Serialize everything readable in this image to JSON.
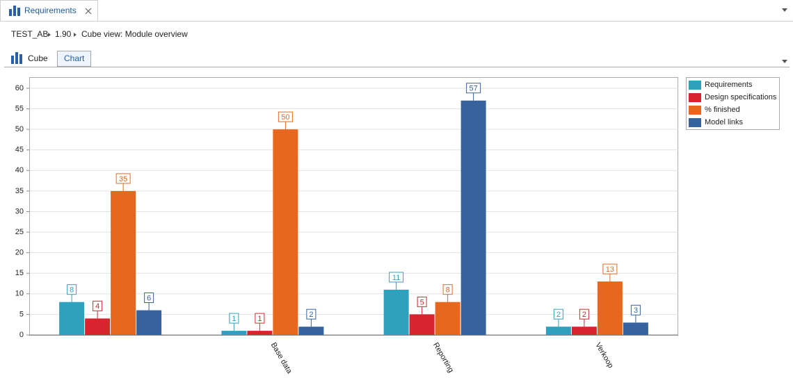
{
  "tab": {
    "title": "Requirements"
  },
  "breadcrumb": [
    "TEST_AB",
    "1.90",
    "Cube view: Module overview"
  ],
  "view_tabs": [
    "Cube",
    "Chart"
  ],
  "chart_data": {
    "type": "bar",
    "categories": [
      null,
      "Base data",
      "Reporting",
      "Verkoop"
    ],
    "series": [
      {
        "name": "Requirements",
        "color": "#2ea1bf",
        "values": [
          8,
          1,
          11,
          2
        ]
      },
      {
        "name": "Design specifications",
        "color": "#d7242f",
        "values": [
          4,
          1,
          5,
          2
        ]
      },
      {
        "name": "% finished",
        "color": "#e8671e",
        "values": [
          35,
          50,
          8,
          13
        ]
      },
      {
        "name": "Model links",
        "color": "#36629e",
        "values": [
          6,
          2,
          57,
          3
        ]
      }
    ],
    "ylim": [
      0,
      60
    ],
    "yticks": [
      0,
      5,
      10,
      15,
      20,
      25,
      30,
      35,
      40,
      45,
      50,
      55,
      60
    ],
    "grid": true,
    "legend": "right"
  }
}
